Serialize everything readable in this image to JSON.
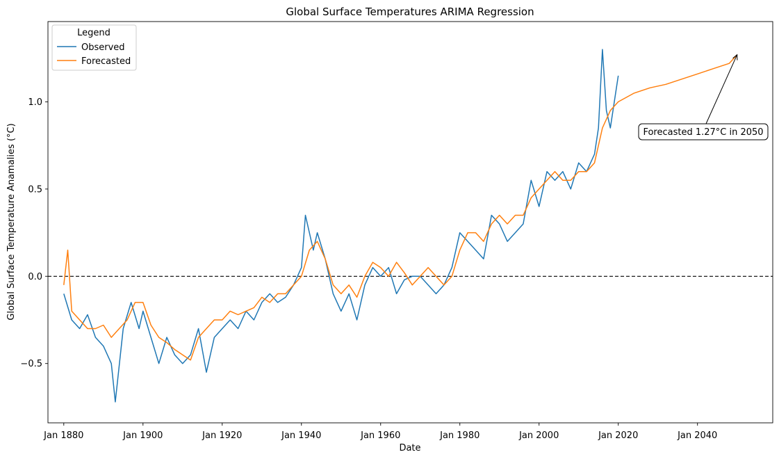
{
  "chart_data": {
    "type": "line",
    "title": "Global Surface Temperatures ARIMA Regression",
    "xlabel": "Date",
    "ylabel": "Global Surface Temperature Anamalies (°C)",
    "xlim": [
      1876,
      2059
    ],
    "ylim": [
      -0.84,
      1.46
    ],
    "x_ticks": [
      {
        "value": 1880,
        "label": "Jan 1880"
      },
      {
        "value": 1900,
        "label": "Jan 1900"
      },
      {
        "value": 1920,
        "label": "Jan 1920"
      },
      {
        "value": 1940,
        "label": "Jan 1940"
      },
      {
        "value": 1960,
        "label": "Jan 1960"
      },
      {
        "value": 1980,
        "label": "Jan 1980"
      },
      {
        "value": 2000,
        "label": "Jan 2000"
      },
      {
        "value": 2020,
        "label": "Jan 2020"
      },
      {
        "value": 2040,
        "label": "Jan 2040"
      }
    ],
    "y_ticks": [
      {
        "value": -0.5,
        "label": "−0.5"
      },
      {
        "value": 0.0,
        "label": "0.0"
      },
      {
        "value": 0.5,
        "label": "0.5"
      },
      {
        "value": 1.0,
        "label": "1.0"
      }
    ],
    "reference_line": {
      "y": 0.0,
      "style": "dashed",
      "color": "#000000"
    },
    "legend": {
      "title": "Legend",
      "placement": "top-left"
    },
    "series": [
      {
        "name": "Observed",
        "color": "#1f77b4",
        "x": [
          1880,
          1882,
          1884,
          1886,
          1888,
          1890,
          1892,
          1893,
          1895,
          1897,
          1899,
          1900,
          1902,
          1904,
          1906,
          1908,
          1910,
          1912,
          1914,
          1916,
          1918,
          1920,
          1922,
          1924,
          1926,
          1928,
          1930,
          1932,
          1934,
          1936,
          1938,
          1940,
          1941,
          1943,
          1944,
          1946,
          1948,
          1950,
          1952,
          1954,
          1956,
          1958,
          1960,
          1962,
          1964,
          1966,
          1968,
          1970,
          1972,
          1974,
          1976,
          1978,
          1980,
          1982,
          1984,
          1986,
          1988,
          1990,
          1992,
          1994,
          1996,
          1998,
          2000,
          2002,
          2004,
          2006,
          2008,
          2010,
          2012,
          2014,
          2015,
          2016,
          2017,
          2018,
          2019,
          2020
        ],
        "y": [
          -0.1,
          -0.25,
          -0.3,
          -0.22,
          -0.35,
          -0.4,
          -0.5,
          -0.72,
          -0.3,
          -0.15,
          -0.3,
          -0.2,
          -0.35,
          -0.5,
          -0.35,
          -0.45,
          -0.5,
          -0.45,
          -0.3,
          -0.55,
          -0.35,
          -0.3,
          -0.25,
          -0.3,
          -0.2,
          -0.25,
          -0.15,
          -0.1,
          -0.15,
          -0.12,
          -0.05,
          0.05,
          0.35,
          0.15,
          0.25,
          0.1,
          -0.1,
          -0.2,
          -0.1,
          -0.25,
          -0.05,
          0.05,
          0.0,
          0.05,
          -0.1,
          -0.02,
          0.0,
          0.0,
          -0.05,
          -0.1,
          -0.05,
          0.05,
          0.25,
          0.2,
          0.15,
          0.1,
          0.35,
          0.3,
          0.2,
          0.25,
          0.3,
          0.55,
          0.4,
          0.6,
          0.55,
          0.6,
          0.5,
          0.65,
          0.6,
          0.7,
          0.85,
          1.3,
          0.95,
          0.85,
          1.0,
          1.15
        ]
      },
      {
        "name": "Forecasted",
        "color": "#ff7f0e",
        "x": [
          1880,
          1881,
          1882,
          1884,
          1886,
          1888,
          1890,
          1892,
          1894,
          1896,
          1898,
          1900,
          1902,
          1904,
          1906,
          1908,
          1910,
          1912,
          1914,
          1916,
          1918,
          1920,
          1922,
          1924,
          1926,
          1928,
          1930,
          1932,
          1934,
          1936,
          1938,
          1940,
          1942,
          1944,
          1946,
          1948,
          1950,
          1952,
          1954,
          1956,
          1958,
          1960,
          1962,
          1964,
          1966,
          1968,
          1970,
          1972,
          1974,
          1976,
          1978,
          1980,
          1982,
          1984,
          1986,
          1988,
          1990,
          1992,
          1994,
          1996,
          1998,
          2000,
          2002,
          2004,
          2006,
          2008,
          2010,
          2012,
          2014,
          2016,
          2018,
          2020,
          2024,
          2028,
          2032,
          2036,
          2040,
          2044,
          2048,
          2050
        ],
        "y": [
          -0.05,
          0.15,
          -0.2,
          -0.25,
          -0.3,
          -0.3,
          -0.28,
          -0.35,
          -0.3,
          -0.25,
          -0.15,
          -0.15,
          -0.28,
          -0.35,
          -0.38,
          -0.42,
          -0.45,
          -0.48,
          -0.35,
          -0.3,
          -0.25,
          -0.25,
          -0.2,
          -0.22,
          -0.2,
          -0.18,
          -0.12,
          -0.15,
          -0.1,
          -0.1,
          -0.05,
          0.0,
          0.15,
          0.2,
          0.1,
          -0.05,
          -0.1,
          -0.05,
          -0.12,
          0.0,
          0.08,
          0.05,
          0.0,
          0.08,
          0.02,
          -0.05,
          0.0,
          0.05,
          0.0,
          -0.05,
          0.0,
          0.15,
          0.25,
          0.25,
          0.2,
          0.3,
          0.35,
          0.3,
          0.35,
          0.35,
          0.45,
          0.5,
          0.55,
          0.6,
          0.55,
          0.55,
          0.6,
          0.6,
          0.65,
          0.85,
          0.95,
          1.0,
          1.05,
          1.08,
          1.1,
          1.13,
          1.16,
          1.19,
          1.22,
          1.27
        ]
      }
    ],
    "annotation": {
      "text": "Forecasted 1.27°C in 2050",
      "x": 2050,
      "y": 1.27
    }
  }
}
